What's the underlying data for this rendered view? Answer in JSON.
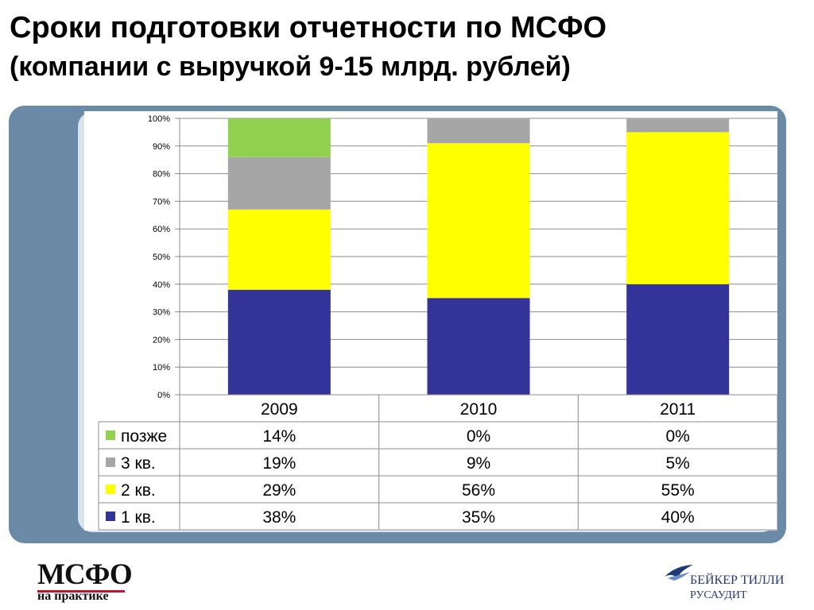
{
  "header": {
    "title": "Сроки подготовки отчетности по МСФО",
    "subtitle": "(компании с выручкой 9-15 млрд. рублей)"
  },
  "chart_data": {
    "type": "bar",
    "stacked": true,
    "categories": [
      "2009",
      "2010",
      "2011"
    ],
    "series": [
      {
        "name": "1 кв.",
        "values": [
          38,
          35,
          40
        ],
        "labels": [
          "38%",
          "35%",
          "40%"
        ],
        "color": "#333399"
      },
      {
        "name": "2 кв.",
        "values": [
          29,
          56,
          55
        ],
        "labels": [
          "29%",
          "56%",
          "55%"
        ],
        "color": "#ffff00"
      },
      {
        "name": "3 кв.",
        "values": [
          19,
          9,
          5
        ],
        "labels": [
          "19%",
          "9%",
          "5%"
        ],
        "color": "#a6a6a6"
      },
      {
        "name": "позже",
        "values": [
          14,
          0,
          0
        ],
        "labels": [
          "14%",
          "0%",
          "0%"
        ],
        "color": "#92d050"
      }
    ],
    "yticks": [
      "0%",
      "10%",
      "20%",
      "30%",
      "40%",
      "50%",
      "60%",
      "70%",
      "80%",
      "90%",
      "100%"
    ],
    "ylim": [
      0,
      100
    ],
    "grid": true,
    "legend": "data-table"
  },
  "logos": {
    "left_line1": "МСФО",
    "left_line2": "на практике",
    "right_line1": "БЕЙКЕР ТИЛЛИ",
    "right_line2": "РУСАУДИТ",
    "right_bird_icon": "bird-icon"
  }
}
